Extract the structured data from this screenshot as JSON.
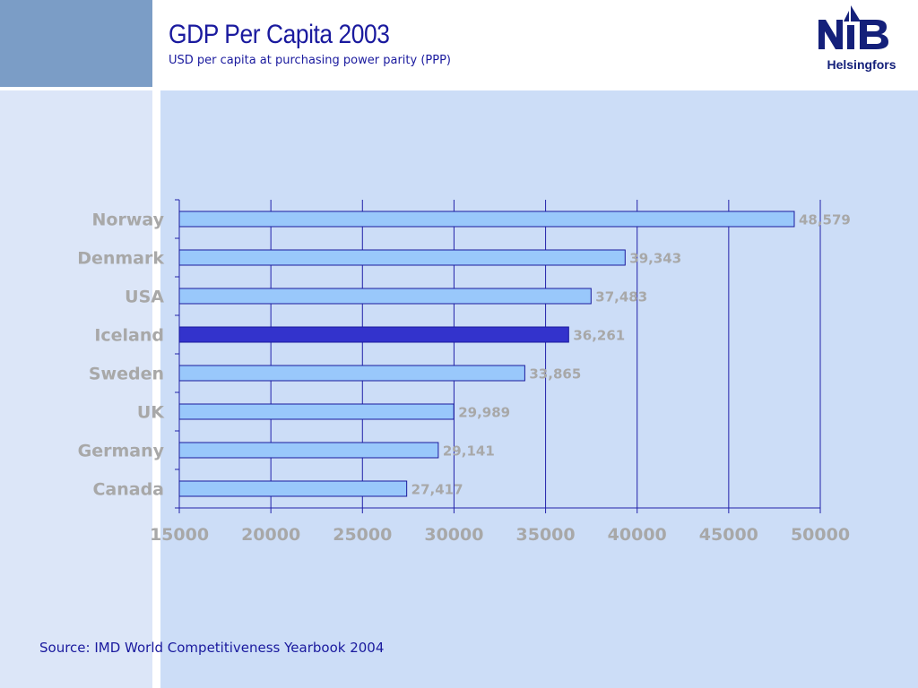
{
  "header": {
    "title": "GDP Per Capita 2003",
    "subtitle": "USD per capita at purchasing power parity (PPP)"
  },
  "logo": {
    "mark": "NIB",
    "caption": "Helsingfors"
  },
  "footer": {
    "source": "Source: IMD World Competitiveness Yearbook 2004"
  },
  "colors": {
    "bar_default": "#99c8fb",
    "bar_highlight": "#3333cc",
    "bar_border": "#1a1a9e",
    "grid": "#2222aa",
    "label_text": "#a8a8a8",
    "title_text": "#1a1a9e"
  },
  "chart_data": {
    "type": "bar",
    "orientation": "horizontal",
    "categories": [
      "Norway",
      "Denmark",
      "USA",
      "Iceland",
      "Sweden",
      "UK",
      "Germany",
      "Canada"
    ],
    "values": [
      48579,
      39343,
      37483,
      36261,
      33865,
      29989,
      29141,
      27417
    ],
    "value_labels": [
      "48,579",
      "39,343",
      "37,483",
      "36,261",
      "33,865",
      "29,989",
      "29,141",
      "27,417"
    ],
    "highlight": "Iceland",
    "xlim": [
      15000,
      50000
    ],
    "xticks": [
      15000,
      20000,
      25000,
      30000,
      35000,
      40000,
      45000,
      50000
    ],
    "xtick_labels": [
      "15000",
      "20000",
      "25000",
      "30000",
      "35000",
      "40000",
      "45000",
      "50000"
    ],
    "grid": true,
    "legend": "none",
    "title": "GDP Per Capita 2003",
    "xlabel": "",
    "ylabel": ""
  }
}
